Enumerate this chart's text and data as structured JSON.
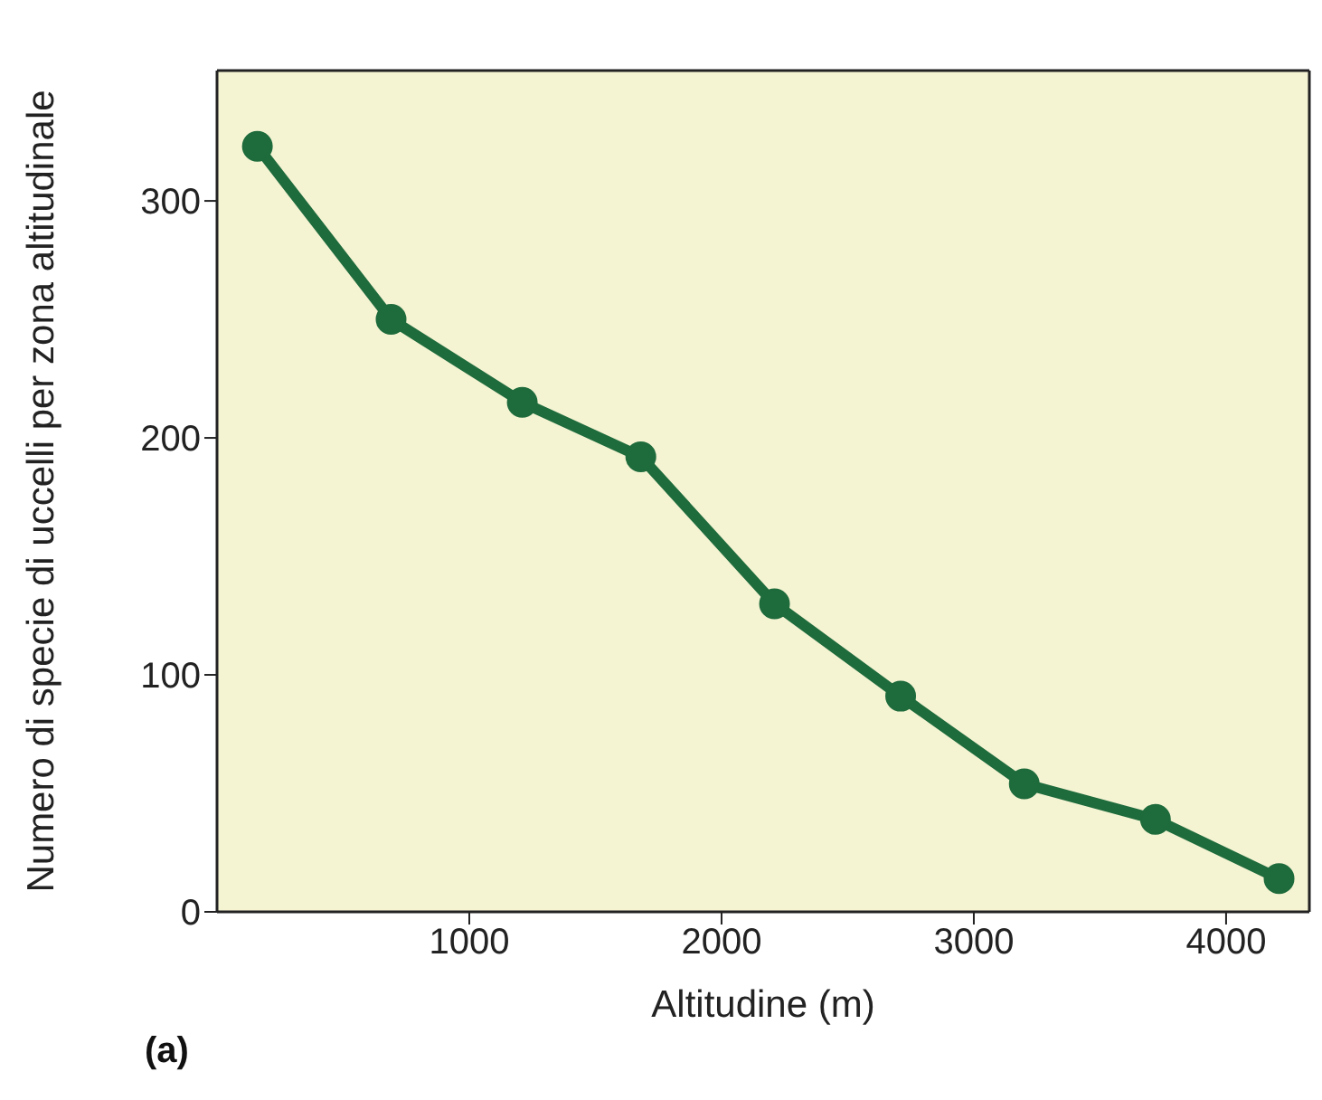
{
  "chart_data": {
    "type": "line",
    "xlabel": "Altitudine (m)",
    "ylabel": "Numero di specie di uccelli per zona altitudinale",
    "annotations": [
      "(a)"
    ],
    "x": [
      160,
      690,
      1210,
      1680,
      2210,
      2710,
      3200,
      3720,
      4210
    ],
    "series": [
      {
        "color": "#1e6b3c",
        "values": [
          323,
          250,
          215,
          192,
          130,
          91,
          54,
          39,
          14
        ]
      }
    ],
    "xlim": [
      0,
      4330
    ],
    "xticks": [
      1000,
      2000,
      3000,
      4000
    ],
    "ylim": [
      0,
      355
    ],
    "yticks": [
      0,
      100,
      200,
      300
    ],
    "grid": false,
    "marker": "circle",
    "line_style": "solid"
  }
}
